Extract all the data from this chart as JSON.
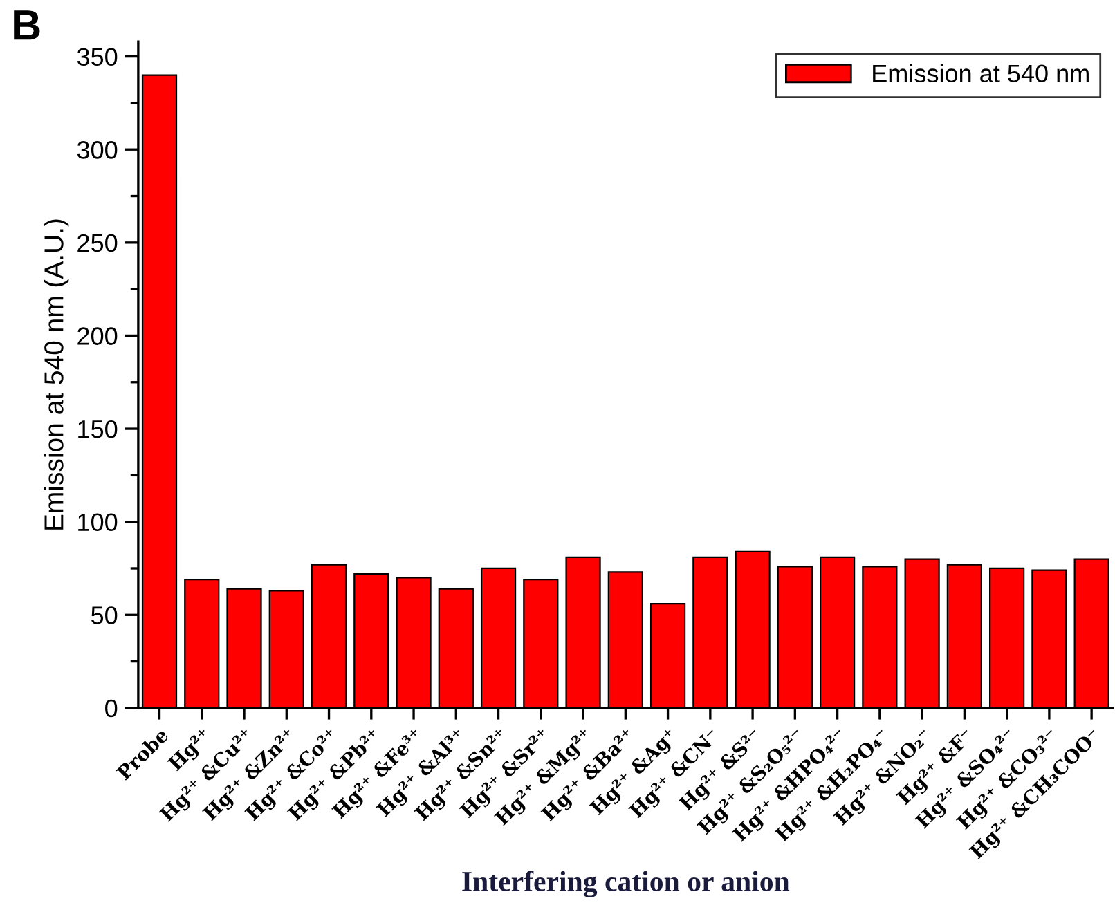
{
  "chart_data": {
    "type": "bar",
    "categories": [
      "Probe",
      "Hg²⁺",
      "Hg²⁺ &Cu²⁺",
      "Hg²⁺ &Zn²⁺",
      "Hg²⁺ &Co²⁺",
      "Hg²⁺ &Pb²⁺",
      "Hg²⁺ &Fe³⁺",
      "Hg²⁺ &Al³⁺",
      "Hg²⁺ &Sn²⁺",
      "Hg²⁺ &Sr²⁺",
      "Hg²⁺ &Mg²⁺",
      "Hg²⁺ &Ba²⁺",
      "Hg²⁺ &Ag⁺",
      "Hg²⁺ &CN⁻",
      "Hg²⁺ &S²⁻",
      "Hg²⁺ &S₂O₅²⁻",
      "Hg²⁺ &HPO₄²⁻",
      "Hg²⁺ &H₂PO₄⁻",
      "Hg²⁺ &NO₂⁻",
      "Hg²⁺ &F⁻",
      "Hg²⁺ &SO₄²⁻",
      "Hg²⁺ &CO₃²⁻",
      "Hg²⁺ &CH₃COO⁻"
    ],
    "series": [
      {
        "name": "Emission at 540 nm",
        "color": "#ff0000",
        "values": [
          340,
          69,
          64,
          63,
          77,
          72,
          70,
          64,
          75,
          69,
          81,
          73,
          56,
          81,
          84,
          76,
          81,
          76,
          80,
          77,
          75,
          74,
          80
        ]
      }
    ],
    "xlabel": "Interfering cation or anion",
    "ylabel": "Emission at 540 nm (A.U.)",
    "annotations": [
      "B"
    ],
    "ylim": [
      0,
      358
    ],
    "yticks": [
      0,
      50,
      100,
      150,
      200,
      250,
      300,
      350
    ],
    "legend": "top right",
    "grid": false
  }
}
